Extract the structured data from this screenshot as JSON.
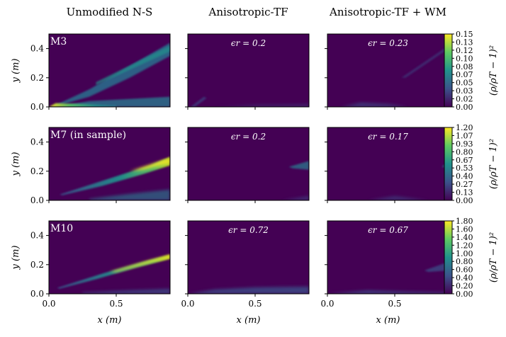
{
  "chart_data": {
    "type": "heatmap",
    "column_titles": [
      "Unmodified N-S",
      "Anisotropic-TF",
      "Anisotropic-TF + WM"
    ],
    "x_axis": {
      "label": "x (m)",
      "range": [
        0.0,
        0.9
      ],
      "ticks": [
        "0.0",
        "0.5"
      ]
    },
    "y_axis": {
      "label": "y (m)",
      "range": [
        0.0,
        0.5
      ],
      "ticks": [
        "0.0",
        "0.2",
        "0.4"
      ]
    },
    "colormap": "viridis",
    "background_color": "#440154",
    "rows": [
      {
        "case_label": "M3",
        "errors": [
          "ϵr = 0.2",
          "ϵr = 0.23"
        ],
        "colorbar": {
          "label": "(ρ/ρT − 1)²",
          "range": [
            0.0,
            0.15
          ],
          "ticks": [
            "0.15",
            "0.13",
            "0.12",
            "0.10",
            "0.08",
            "0.07",
            "0.05",
            "0.03",
            "0.02",
            "0.00"
          ]
        }
      },
      {
        "case_label": "M7 (in sample)",
        "errors": [
          "ϵr = 0.2",
          "ϵr = 0.17"
        ],
        "colorbar": {
          "label": "(ρ/ρT − 1)²",
          "range": [
            0.0,
            1.2
          ],
          "ticks": [
            "1.20",
            "1.07",
            "0.93",
            "0.80",
            "0.67",
            "0.53",
            "0.40",
            "0.27",
            "0.13",
            "0.00"
          ]
        }
      },
      {
        "case_label": "M10",
        "errors": [
          "ϵr = 0.72",
          "ϵr = 0.67"
        ],
        "colorbar": {
          "label": "(ρ/ρT − 1)²",
          "range": [
            0.0,
            1.8
          ],
          "ticks": [
            "1.80",
            "1.60",
            "1.40",
            "1.20",
            "1.00",
            "0.80",
            "0.60",
            "0.40",
            "0.20",
            "0.00"
          ]
        }
      }
    ]
  }
}
